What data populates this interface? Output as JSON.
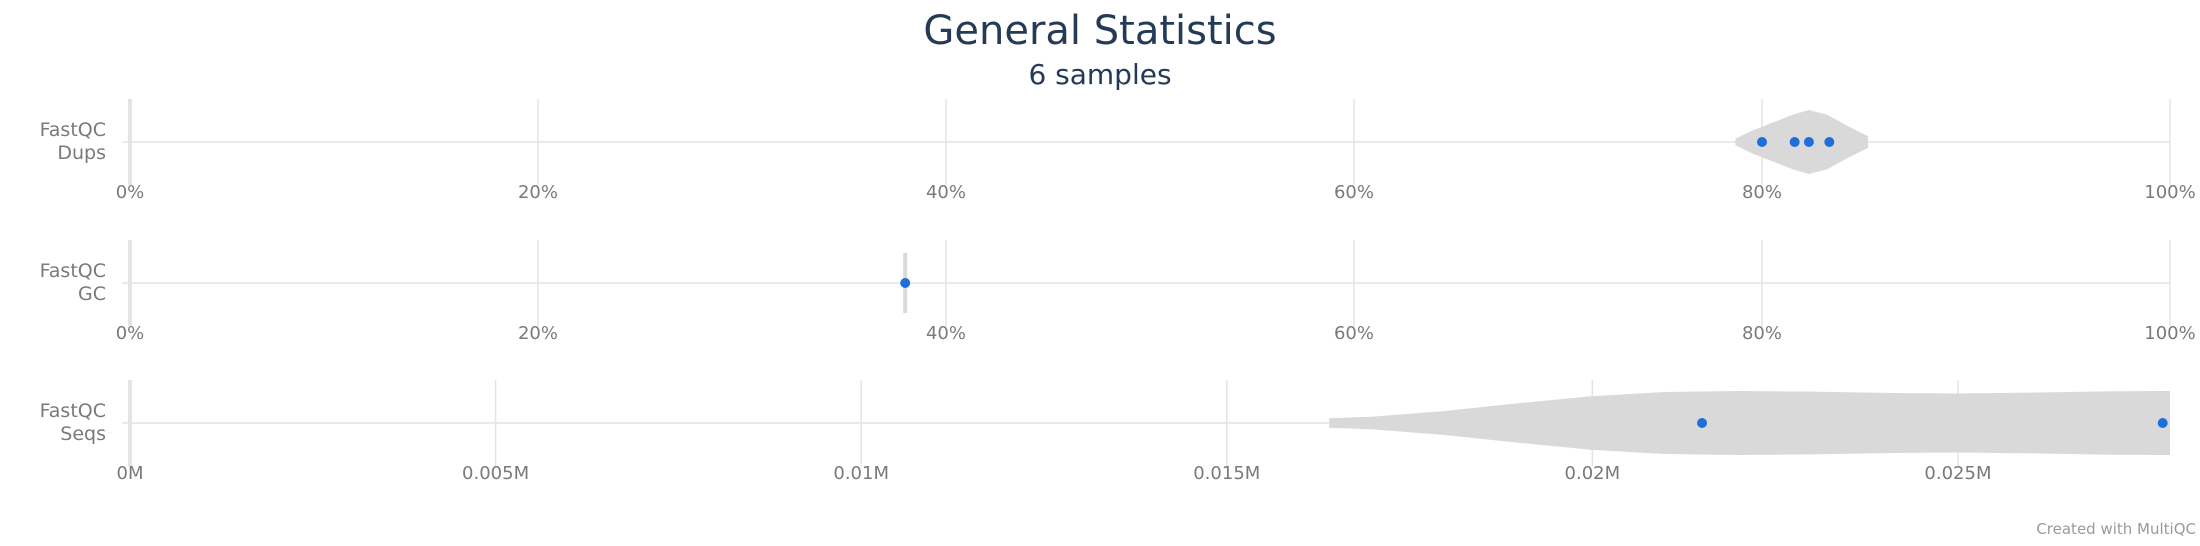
{
  "title": "General Statistics",
  "subtitle": "6 samples",
  "credit": "Created with MultiQC",
  "colors": {
    "point": "#1f6fd9",
    "violin": "#d9d9d9",
    "grid": "#e4e4e4",
    "label": "#7a7a7a",
    "title": "#253a57"
  },
  "chart_data": [
    {
      "type": "violin",
      "label_lines": [
        "FastQC",
        "Dups"
      ],
      "xlim": [
        0,
        100
      ],
      "ticks": [
        0,
        20,
        40,
        60,
        80,
        100
      ],
      "tick_labels": [
        "0%",
        "20%",
        "40%",
        "60%",
        "80%",
        "100%"
      ],
      "points": [
        80.0,
        81.6,
        82.3,
        83.3
      ],
      "violin": [
        [
          78.7,
          0.1
        ],
        [
          79.5,
          0.35
        ],
        [
          80.5,
          0.6
        ],
        [
          81.5,
          0.85
        ],
        [
          82.3,
          1.0
        ],
        [
          83.2,
          0.85
        ],
        [
          84.2,
          0.5
        ],
        [
          85.2,
          0.18
        ]
      ]
    },
    {
      "type": "violin",
      "label_lines": [
        "FastQC",
        "GC"
      ],
      "xlim": [
        0,
        100
      ],
      "ticks": [
        0,
        20,
        40,
        60,
        80,
        100
      ],
      "tick_labels": [
        "0%",
        "20%",
        "40%",
        "60%",
        "80%",
        "100%"
      ],
      "points": [
        38.0
      ],
      "violin": []
    },
    {
      "type": "violin",
      "label_lines": [
        "FastQC",
        "Seqs"
      ],
      "xlim": [
        0,
        0.0279
      ],
      "ticks": [
        0,
        0.005,
        0.01,
        0.015,
        0.02,
        0.025
      ],
      "tick_labels": [
        "0M",
        "0.005M",
        "0.01M",
        "0.015M",
        "0.02M",
        "0.025M"
      ],
      "points": [
        0.0215,
        0.0278
      ],
      "violin": [
        [
          0.0164,
          0.15
        ],
        [
          0.017,
          0.2
        ],
        [
          0.018,
          0.38
        ],
        [
          0.019,
          0.62
        ],
        [
          0.02,
          0.84
        ],
        [
          0.021,
          0.97
        ],
        [
          0.022,
          1.0
        ],
        [
          0.023,
          0.98
        ],
        [
          0.024,
          0.94
        ],
        [
          0.025,
          0.92
        ],
        [
          0.026,
          0.95
        ],
        [
          0.027,
          0.99
        ],
        [
          0.0279,
          1.0
        ]
      ]
    }
  ]
}
